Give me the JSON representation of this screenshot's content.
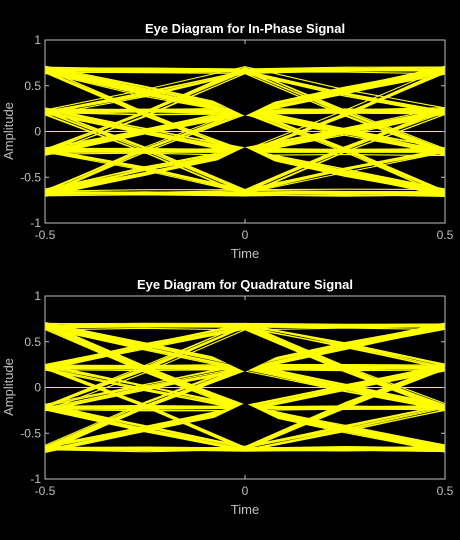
{
  "chart_data": [
    {
      "type": "line",
      "title": "Eye Diagram for In-Phase Signal",
      "xlabel": "Time",
      "ylabel": "Amplitude",
      "xlim": [
        -0.5,
        0.5
      ],
      "ylim": [
        -1,
        1
      ],
      "xticks": [
        -0.5,
        0,
        0.5
      ],
      "xtick_labels": [
        "-0.5",
        "0",
        "0.5"
      ],
      "yticks": [
        -1,
        -0.5,
        0,
        0.5,
        1
      ],
      "ytick_labels": [
        "-1",
        "-0.5",
        "0",
        "0.5",
        "1"
      ],
      "grid": false,
      "trace_color": "#ffff00",
      "background_color": "#000000",
      "axis_color": "#bfbfbf",
      "symbol_levels": [
        -0.67,
        -0.22,
        0.22,
        0.67
      ],
      "center_eye": {
        "x": 0,
        "upper": [
          0.17,
          0.55
        ],
        "lower": [
          -0.55,
          -0.17
        ]
      },
      "series": [
        {
          "x": [
            -0.5,
            -0.25,
            0,
            0.25,
            0.5
          ],
          "values": [
            0.67,
            0.67,
            0.67,
            0.67,
            0.67
          ]
        },
        {
          "x": [
            -0.5,
            -0.25,
            0,
            0.25,
            0.5
          ],
          "values": [
            -0.67,
            -0.67,
            -0.67,
            -0.67,
            -0.67
          ]
        },
        {
          "x": [
            -0.5,
            -0.25,
            0,
            0.25,
            0.5
          ],
          "values": [
            0.22,
            0.22,
            0.22,
            0.22,
            0.22
          ]
        },
        {
          "x": [
            -0.5,
            -0.25,
            0,
            0.25,
            0.5
          ],
          "values": [
            -0.22,
            -0.22,
            -0.22,
            -0.22,
            -0.22
          ]
        },
        {
          "x": [
            -0.5,
            -0.25,
            0,
            0.25,
            0.5
          ],
          "values": [
            0.67,
            0.42,
            0.22,
            0.0,
            -0.22
          ]
        },
        {
          "x": [
            -0.5,
            -0.25,
            0,
            0.25,
            0.5
          ],
          "values": [
            -0.67,
            -0.42,
            -0.22,
            0.0,
            0.22
          ]
        },
        {
          "x": [
            -0.5,
            -0.25,
            0,
            0.25,
            0.5
          ],
          "values": [
            0.22,
            0.42,
            0.67,
            0.42,
            0.22
          ]
        },
        {
          "x": [
            -0.5,
            -0.25,
            0,
            0.25,
            0.5
          ],
          "values": [
            -0.22,
            -0.42,
            -0.67,
            -0.42,
            -0.22
          ]
        },
        {
          "x": [
            -0.5,
            -0.25,
            0,
            0.25,
            0.5
          ],
          "values": [
            0.67,
            0.2,
            -0.22,
            -0.45,
            -0.67
          ]
        },
        {
          "x": [
            -0.5,
            -0.25,
            0,
            0.25,
            0.5
          ],
          "values": [
            -0.67,
            -0.2,
            0.22,
            0.45,
            0.67
          ]
        },
        {
          "x": [
            -0.5,
            -0.25,
            0,
            0.25,
            0.5
          ],
          "values": [
            0.22,
            0.0,
            -0.22,
            0.0,
            0.22
          ]
        },
        {
          "x": [
            -0.5,
            -0.25,
            0,
            0.25,
            0.5
          ],
          "values": [
            -0.22,
            0.0,
            0.22,
            0.0,
            -0.22
          ]
        },
        {
          "x": [
            -0.5,
            -0.25,
            0,
            0.25,
            0.5
          ],
          "values": [
            0.67,
            0.45,
            0.22,
            0.45,
            0.67
          ]
        },
        {
          "x": [
            -0.5,
            -0.25,
            0,
            0.25,
            0.5
          ],
          "values": [
            -0.67,
            -0.45,
            -0.22,
            -0.45,
            -0.67
          ]
        },
        {
          "x": [
            -0.5,
            -0.25,
            0,
            0.25,
            0.5
          ],
          "values": [
            0.22,
            -0.2,
            -0.67,
            -0.2,
            0.22
          ]
        },
        {
          "x": [
            -0.5,
            -0.25,
            0,
            0.25,
            0.5
          ],
          "values": [
            -0.22,
            0.2,
            0.67,
            0.2,
            -0.22
          ]
        },
        {
          "x": [
            -0.5,
            -0.25,
            0,
            0.25,
            0.5
          ],
          "values": [
            -0.67,
            -0.45,
            -0.22,
            0.2,
            0.67
          ]
        },
        {
          "x": [
            -0.5,
            -0.25,
            0,
            0.25,
            0.5
          ],
          "values": [
            0.67,
            0.45,
            0.22,
            -0.2,
            -0.67
          ]
        },
        {
          "x": [
            -0.5,
            -0.25,
            0,
            0.25,
            0.5
          ],
          "values": [
            0.22,
            0.0,
            -0.22,
            -0.45,
            -0.67
          ]
        },
        {
          "x": [
            -0.5,
            -0.25,
            0,
            0.25,
            0.5
          ],
          "values": [
            -0.22,
            0.0,
            0.22,
            0.45,
            0.67
          ]
        }
      ]
    },
    {
      "type": "line",
      "title": "Eye Diagram for Quadrature Signal",
      "xlabel": "Time",
      "ylabel": "Amplitude",
      "xlim": [
        -0.5,
        0.5
      ],
      "ylim": [
        -1,
        1
      ],
      "xticks": [
        -0.5,
        0,
        0.5
      ],
      "xtick_labels": [
        "-0.5",
        "0",
        "0.5"
      ],
      "yticks": [
        -1,
        -0.5,
        0,
        0.5,
        1
      ],
      "ytick_labels": [
        "-1",
        "-0.5",
        "0",
        "0.5",
        "1"
      ],
      "grid": false,
      "trace_color": "#ffff00",
      "background_color": "#000000",
      "axis_color": "#bfbfbf",
      "symbol_levels": [
        -0.67,
        -0.22,
        0.22,
        0.67
      ],
      "center_eye": {
        "x": 0,
        "upper": [
          0.17,
          0.55
        ],
        "lower": [
          -0.55,
          -0.17
        ]
      },
      "series": [
        {
          "x": [
            -0.5,
            -0.25,
            0,
            0.25,
            0.5
          ],
          "values": [
            0.67,
            0.67,
            0.67,
            0.67,
            0.67
          ]
        },
        {
          "x": [
            -0.5,
            -0.25,
            0,
            0.25,
            0.5
          ],
          "values": [
            -0.67,
            -0.67,
            -0.67,
            -0.67,
            -0.67
          ]
        },
        {
          "x": [
            -0.5,
            -0.25,
            0,
            0.25,
            0.5
          ],
          "values": [
            0.22,
            0.22,
            0.22,
            0.22,
            0.22
          ]
        },
        {
          "x": [
            -0.5,
            -0.25,
            0,
            0.25,
            0.5
          ],
          "values": [
            -0.22,
            -0.22,
            -0.22,
            -0.22,
            -0.22
          ]
        },
        {
          "x": [
            -0.5,
            -0.25,
            0,
            0.25,
            0.5
          ],
          "values": [
            0.67,
            0.45,
            0.22,
            0.0,
            -0.22
          ]
        },
        {
          "x": [
            -0.5,
            -0.25,
            0,
            0.25,
            0.5
          ],
          "values": [
            -0.67,
            -0.45,
            -0.22,
            0.0,
            0.22
          ]
        },
        {
          "x": [
            -0.5,
            -0.25,
            0,
            0.25,
            0.5
          ],
          "values": [
            0.22,
            0.45,
            0.67,
            0.45,
            0.22
          ]
        },
        {
          "x": [
            -0.5,
            -0.25,
            0,
            0.25,
            0.5
          ],
          "values": [
            -0.22,
            -0.45,
            -0.67,
            -0.45,
            -0.22
          ]
        },
        {
          "x": [
            -0.5,
            -0.25,
            0,
            0.25,
            0.5
          ],
          "values": [
            0.67,
            0.2,
            -0.22,
            -0.45,
            -0.67
          ]
        },
        {
          "x": [
            -0.5,
            -0.25,
            0,
            0.25,
            0.5
          ],
          "values": [
            -0.67,
            -0.2,
            0.22,
            0.45,
            0.67
          ]
        },
        {
          "x": [
            -0.5,
            -0.25,
            0,
            0.25,
            0.5
          ],
          "values": [
            0.22,
            0.0,
            -0.22,
            0.0,
            0.22
          ]
        },
        {
          "x": [
            -0.5,
            -0.25,
            0,
            0.25,
            0.5
          ],
          "values": [
            -0.22,
            0.0,
            0.22,
            0.0,
            -0.22
          ]
        },
        {
          "x": [
            -0.5,
            -0.25,
            0,
            0.25,
            0.5
          ],
          "values": [
            0.67,
            0.45,
            0.22,
            0.45,
            0.67
          ]
        },
        {
          "x": [
            -0.5,
            -0.25,
            0,
            0.25,
            0.5
          ],
          "values": [
            -0.67,
            -0.45,
            -0.22,
            -0.45,
            -0.67
          ]
        },
        {
          "x": [
            -0.5,
            -0.25,
            0,
            0.25,
            0.5
          ],
          "values": [
            0.22,
            -0.2,
            -0.67,
            -0.2,
            0.22
          ]
        },
        {
          "x": [
            -0.5,
            -0.25,
            0,
            0.25,
            0.5
          ],
          "values": [
            -0.22,
            0.2,
            0.67,
            0.2,
            -0.22
          ]
        },
        {
          "x": [
            -0.5,
            -0.25,
            0,
            0.25,
            0.5
          ],
          "values": [
            -0.67,
            -0.2,
            0.22,
            0.45,
            0.67
          ]
        },
        {
          "x": [
            -0.5,
            -0.25,
            0,
            0.25,
            0.5
          ],
          "values": [
            0.67,
            0.2,
            -0.22,
            -0.45,
            -0.67
          ]
        },
        {
          "x": [
            -0.5,
            -0.25,
            0,
            0.25,
            0.5
          ],
          "values": [
            0.22,
            0.45,
            0.67,
            0.2,
            -0.22
          ]
        },
        {
          "x": [
            -0.5,
            -0.25,
            0,
            0.25,
            0.5
          ],
          "values": [
            -0.22,
            -0.45,
            -0.67,
            -0.2,
            0.22
          ]
        }
      ]
    }
  ]
}
